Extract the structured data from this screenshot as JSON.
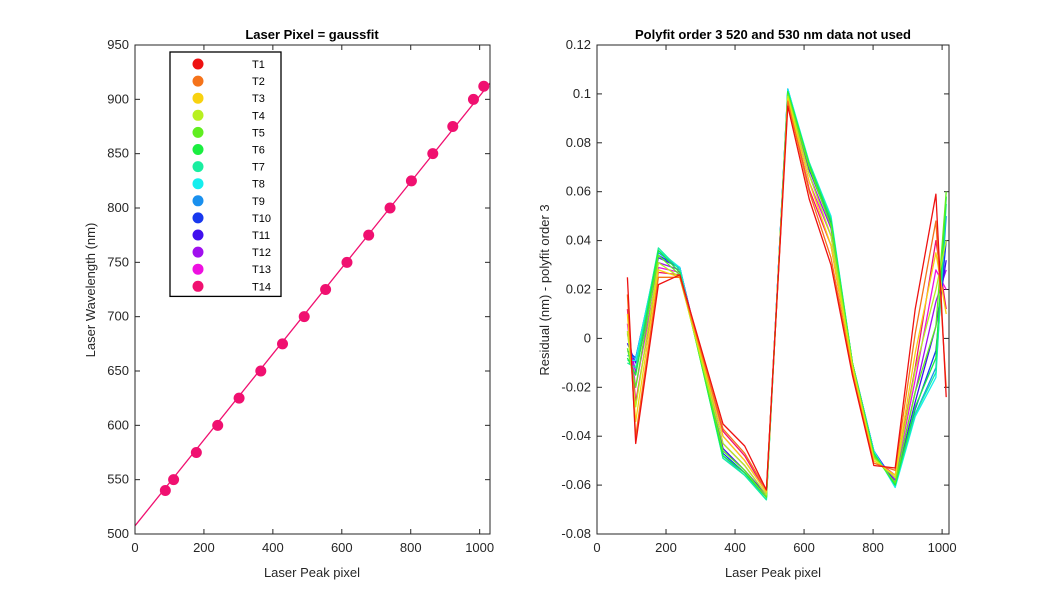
{
  "chart_data": [
    {
      "type": "scatter",
      "title": "Laser Pixel = gaussfit",
      "xlabel": "Laser Peak pixel",
      "ylabel": "Laser Wavelength (nm)",
      "xlim": [
        0,
        1030
      ],
      "ylim": [
        500,
        950
      ],
      "xticks": [
        0,
        200,
        400,
        600,
        800,
        1000
      ],
      "yticks": [
        500,
        550,
        600,
        650,
        700,
        750,
        800,
        850,
        900,
        950
      ],
      "fit_line": {
        "x": [
          0,
          1030
        ],
        "y": [
          507.5,
          915
        ]
      },
      "x": [
        88,
        112,
        178,
        240,
        302,
        365,
        428,
        491,
        553,
        615,
        678,
        740,
        802,
        864,
        922,
        982,
        1012
      ],
      "y": [
        540,
        550,
        575,
        600,
        625,
        650,
        675,
        700,
        725,
        750,
        775,
        800,
        825,
        850,
        875,
        900,
        912
      ],
      "marker_color": "#f01070",
      "legend": {
        "placement": "top-left",
        "entries": [
          {
            "label": "T1",
            "color": "#ee1111"
          },
          {
            "label": "T2",
            "color": "#f5731a"
          },
          {
            "label": "T3",
            "color": "#f8d210"
          },
          {
            "label": "T4",
            "color": "#b8f020"
          },
          {
            "label": "T5",
            "color": "#60ee20"
          },
          {
            "label": "T6",
            "color": "#1aee40"
          },
          {
            "label": "T7",
            "color": "#19eea0"
          },
          {
            "label": "T8",
            "color": "#15eeee"
          },
          {
            "label": "T9",
            "color": "#1a90ee"
          },
          {
            "label": "T10",
            "color": "#1838ee"
          },
          {
            "label": "T11",
            "color": "#4010ee"
          },
          {
            "label": "T12",
            "color": "#a010ee"
          },
          {
            "label": "T13",
            "color": "#ee10e0"
          },
          {
            "label": "T14",
            "color": "#f01070"
          }
        ]
      }
    },
    {
      "type": "line",
      "title": "Polyfit order 3  520 and 530 nm data not used",
      "xlabel": "Laser Peak pixel",
      "ylabel": "Residual (nm) - polyfit order 3",
      "xlim": [
        0,
        1020
      ],
      "ylim": [
        -0.08,
        0.12
      ],
      "xticks": [
        0,
        200,
        400,
        600,
        800,
        1000
      ],
      "yticks": [
        -0.08,
        -0.06,
        -0.04,
        -0.02,
        0,
        0.02,
        0.04,
        0.06,
        0.08,
        0.1,
        0.12
      ],
      "ytick_labels": [
        "-0.08",
        "-0.06",
        "-0.04",
        "-0.02",
        "0",
        "0.02",
        "0.04",
        "0.06",
        "0.08",
        "0.1",
        "0.12"
      ],
      "x": [
        88,
        112,
        178,
        240,
        365,
        428,
        491,
        553,
        615,
        678,
        740,
        802,
        864,
        922,
        982,
        1012
      ],
      "series_start": [
        {
          "color": "#ee1111",
          "y": [
            0.025,
            -0.043,
            0.022,
            0.026,
            -0.035,
            -0.044,
            -0.062,
            0.095,
            0.057,
            0.03,
            -0.015,
            -0.052,
            -0.053,
            0.012,
            0.059,
            -0.024
          ]
        },
        {
          "color": "#f5731a",
          "y": [
            0.018,
            -0.04,
            0.025,
            0.025,
            -0.037,
            -0.047,
            -0.062,
            0.097,
            0.06,
            0.033,
            -0.014,
            -0.051,
            -0.054,
            0.002,
            0.048,
            -0.02
          ]
        },
        {
          "color": "#f8d210",
          "y": [
            0.01,
            -0.034,
            0.028,
            0.025,
            -0.04,
            -0.05,
            -0.063,
            0.098,
            0.064,
            0.038,
            -0.012,
            -0.05,
            -0.056,
            -0.006,
            0.035,
            0.01
          ]
        },
        {
          "color": "#b8f020",
          "y": [
            0.003,
            -0.028,
            0.031,
            0.025,
            -0.043,
            -0.052,
            -0.064,
            0.099,
            0.067,
            0.042,
            -0.011,
            -0.049,
            -0.057,
            -0.013,
            0.02,
            0.04
          ]
        },
        {
          "color": "#60ee20",
          "y": [
            -0.004,
            -0.02,
            0.034,
            0.026,
            -0.046,
            -0.054,
            -0.065,
            0.1,
            0.07,
            0.046,
            -0.01,
            -0.048,
            -0.059,
            -0.022,
            0.005,
            0.06
          ]
        },
        {
          "color": "#1aee40",
          "y": [
            -0.008,
            -0.015,
            0.036,
            0.027,
            -0.048,
            -0.055,
            -0.065,
            0.101,
            0.071,
            0.048,
            -0.01,
            -0.047,
            -0.06,
            -0.028,
            -0.008,
            0.058
          ]
        },
        {
          "color": "#19eea0",
          "y": [
            -0.01,
            -0.012,
            0.037,
            0.028,
            -0.049,
            -0.056,
            -0.066,
            0.101,
            0.072,
            0.049,
            -0.01,
            -0.047,
            -0.06,
            -0.031,
            -0.014,
            0.055
          ]
        },
        {
          "color": "#15eeee",
          "y": [
            -0.009,
            -0.009,
            0.036,
            0.029,
            -0.049,
            -0.056,
            -0.066,
            0.102,
            0.072,
            0.05,
            -0.01,
            -0.046,
            -0.061,
            -0.032,
            -0.016,
            0.058
          ]
        },
        {
          "color": "#1a90ee",
          "y": [
            -0.007,
            -0.008,
            0.035,
            0.029,
            -0.048,
            -0.056,
            -0.065,
            0.102,
            0.071,
            0.049,
            -0.01,
            -0.046,
            -0.06,
            -0.031,
            -0.012,
            0.05
          ]
        },
        {
          "color": "#1838ee",
          "y": [
            -0.005,
            -0.008,
            0.034,
            0.029,
            -0.047,
            -0.055,
            -0.065,
            0.102,
            0.07,
            0.048,
            -0.01,
            -0.046,
            -0.06,
            -0.029,
            -0.005,
            0.04
          ]
        },
        {
          "color": "#4010ee",
          "y": [
            -0.002,
            -0.01,
            0.033,
            0.029,
            -0.045,
            -0.054,
            -0.064,
            0.101,
            0.069,
            0.047,
            -0.01,
            -0.046,
            -0.059,
            -0.026,
            0.005,
            0.032
          ]
        },
        {
          "color": "#a010ee",
          "y": [
            0.002,
            -0.014,
            0.031,
            0.028,
            -0.043,
            -0.052,
            -0.064,
            0.1,
            0.067,
            0.045,
            -0.011,
            -0.047,
            -0.058,
            -0.022,
            0.015,
            0.028
          ]
        },
        {
          "color": "#ee10e0",
          "y": [
            0.006,
            -0.02,
            0.029,
            0.027,
            -0.04,
            -0.05,
            -0.063,
            0.099,
            0.064,
            0.042,
            -0.012,
            -0.048,
            -0.057,
            -0.017,
            0.028,
            0.02
          ]
        },
        {
          "color": "#f01070",
          "y": [
            0.012,
            -0.026,
            0.027,
            0.026,
            -0.038,
            -0.048,
            -0.063,
            0.098,
            0.061,
            0.038,
            -0.013,
            -0.049,
            -0.056,
            -0.012,
            0.04,
            0.012
          ]
        }
      ]
    }
  ]
}
